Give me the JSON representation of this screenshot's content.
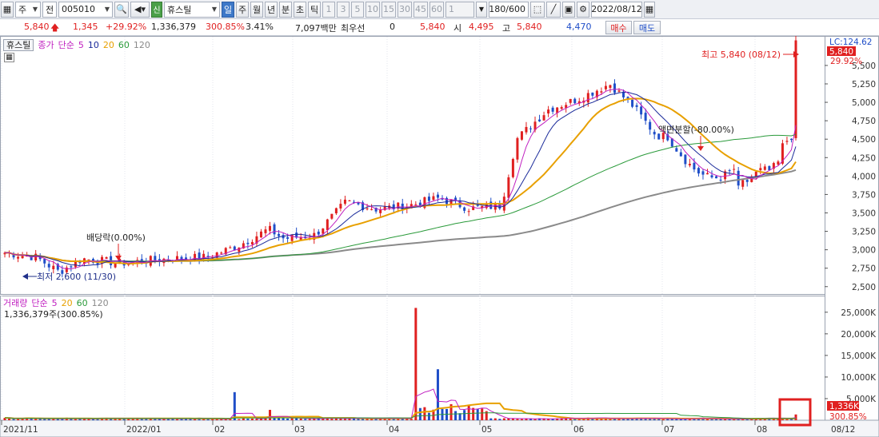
{
  "toolbar": {
    "market": "주",
    "exchange": "전",
    "code": "005010",
    "badge": "신",
    "name": "휴스틸",
    "periods": [
      "일",
      "주",
      "월",
      "년",
      "분",
      "초",
      "틱"
    ],
    "intervals": [
      "1",
      "3",
      "5",
      "10",
      "15",
      "30",
      "45",
      "60"
    ],
    "interval_value": "1",
    "count": "180/600",
    "date": "2022/08/12"
  },
  "quote": {
    "price": "5,840",
    "change": "1,345",
    "change_pct": "+29.92%",
    "volume": "1,336,379",
    "volume_ratio": "300.85%",
    "turnover": "3.41%",
    "amount": "7,097백만",
    "best_label": "최우선",
    "best_value": "0",
    "last": "5,840",
    "open_label": "시",
    "open": "4,495",
    "high_label": "고",
    "high": "5,840",
    "low": "4,470",
    "buy": "매수",
    "sell": "매도"
  },
  "price_panel": {
    "title": "휴스틸",
    "legend": [
      "종가",
      "단순",
      "5",
      "10",
      "20",
      "60",
      "120"
    ],
    "annotations": {
      "high": "최고 5,840 (08/12)",
      "low": "최저 2,600 (11/30)",
      "dividend": "배당락(0.00%)",
      "split": "액면분할(-80.00%)"
    },
    "right_top": "LC:124.62",
    "price_label": "5,840",
    "pct_label": "29.92%"
  },
  "volume_panel": {
    "legend": [
      "거래량",
      "단순",
      "5",
      "20",
      "60",
      "120"
    ],
    "current": "1,336,379주(300.85%)",
    "vol_label": "1,336K",
    "pct_label": "300.85%"
  },
  "colors": {
    "up": "#e02020",
    "down": "#1f4ec8",
    "ma5": "#c020c0",
    "ma10": "#1a2a9a",
    "ma20": "#e8a000",
    "ma60": "#2a9a3a",
    "ma120": "#8a8a8a",
    "highlight": "#e02020"
  },
  "chart_data": {
    "type": "candlestick",
    "x_ticks": [
      "2021/11",
      "2022/01",
      "02",
      "03",
      "04",
      "05",
      "06",
      "07",
      "08",
      "08/12"
    ],
    "price_ticks": [
      "5,500",
      "5,250",
      "5,000",
      "4,750",
      "4,500",
      "4,250",
      "4,000",
      "3,750",
      "3,500",
      "3,250",
      "3,000",
      "2,750",
      "2,500"
    ],
    "volume_ticks": [
      "25,000K",
      "20,000K",
      "15,000K",
      "10,000K",
      "5,000K"
    ],
    "price_range": [
      2400,
      5900
    ],
    "volume_range": [
      0,
      27000
    ]
  }
}
